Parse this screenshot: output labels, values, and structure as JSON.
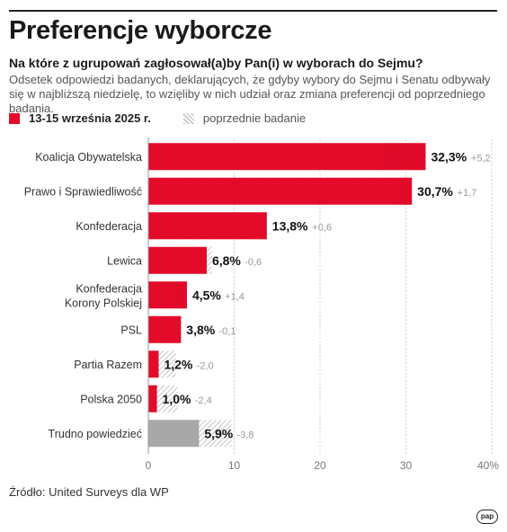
{
  "header": {
    "title": "Preferencje wyborcze",
    "subtitle": "Na które z ugrupowań zagłosował(a)by Pan(i) w wyborach do Sejmu?",
    "description": "Odsetek odpowiedzi badanych, deklarujących, że gdyby wybory do Sejmu i Senatu odbywały się w najbliższą niedzielę, to wzięliby w nich udział oraz zmiana preferencji od poprzedniego badania."
  },
  "legend": {
    "current": "13-15 września 2025 r.",
    "previous": "poprzednie badanie"
  },
  "colors": {
    "current": "#e30b29",
    "undecided": "#a8a8a8",
    "previous_hatch": "#c9c9c9"
  },
  "chart_data": {
    "type": "bar",
    "orientation": "horizontal",
    "categories": [
      "Koalicja Obywatelska",
      "Prawo i Sprawiedliwość",
      "Konfederacja",
      "Lewica",
      "Konfederacja Korony Polskiej",
      "PSL",
      "Partia Razem",
      "Polska 2050",
      "Trudno powiedzieć"
    ],
    "series": [
      {
        "name": "13-15 września 2025 r.",
        "values": [
          32.3,
          30.7,
          13.8,
          6.8,
          4.5,
          3.8,
          1.2,
          1.0,
          5.9
        ]
      },
      {
        "name": "poprzednie badanie",
        "values": [
          27.1,
          29.0,
          13.2,
          7.4,
          3.1,
          3.9,
          3.2,
          3.4,
          9.7
        ]
      }
    ],
    "value_labels": [
      "32,3%",
      "30,7%",
      "13,8%",
      "6,8%",
      "4,5%",
      "3,8%",
      "1,2%",
      "1,0%",
      "5,9%"
    ],
    "change_labels": [
      "+5,2",
      "+1,7",
      "+0,6",
      "-0,6",
      "+1,4",
      "-0,1",
      "-2,0",
      "-2,4",
      "-3,8"
    ],
    "xlim": [
      0,
      40
    ],
    "x_ticks": [
      "0",
      "10",
      "20",
      "30",
      "40%"
    ],
    "grid": true
  },
  "footer": {
    "source": "Źródło: United Surveys dla WP",
    "logo": "pap"
  }
}
